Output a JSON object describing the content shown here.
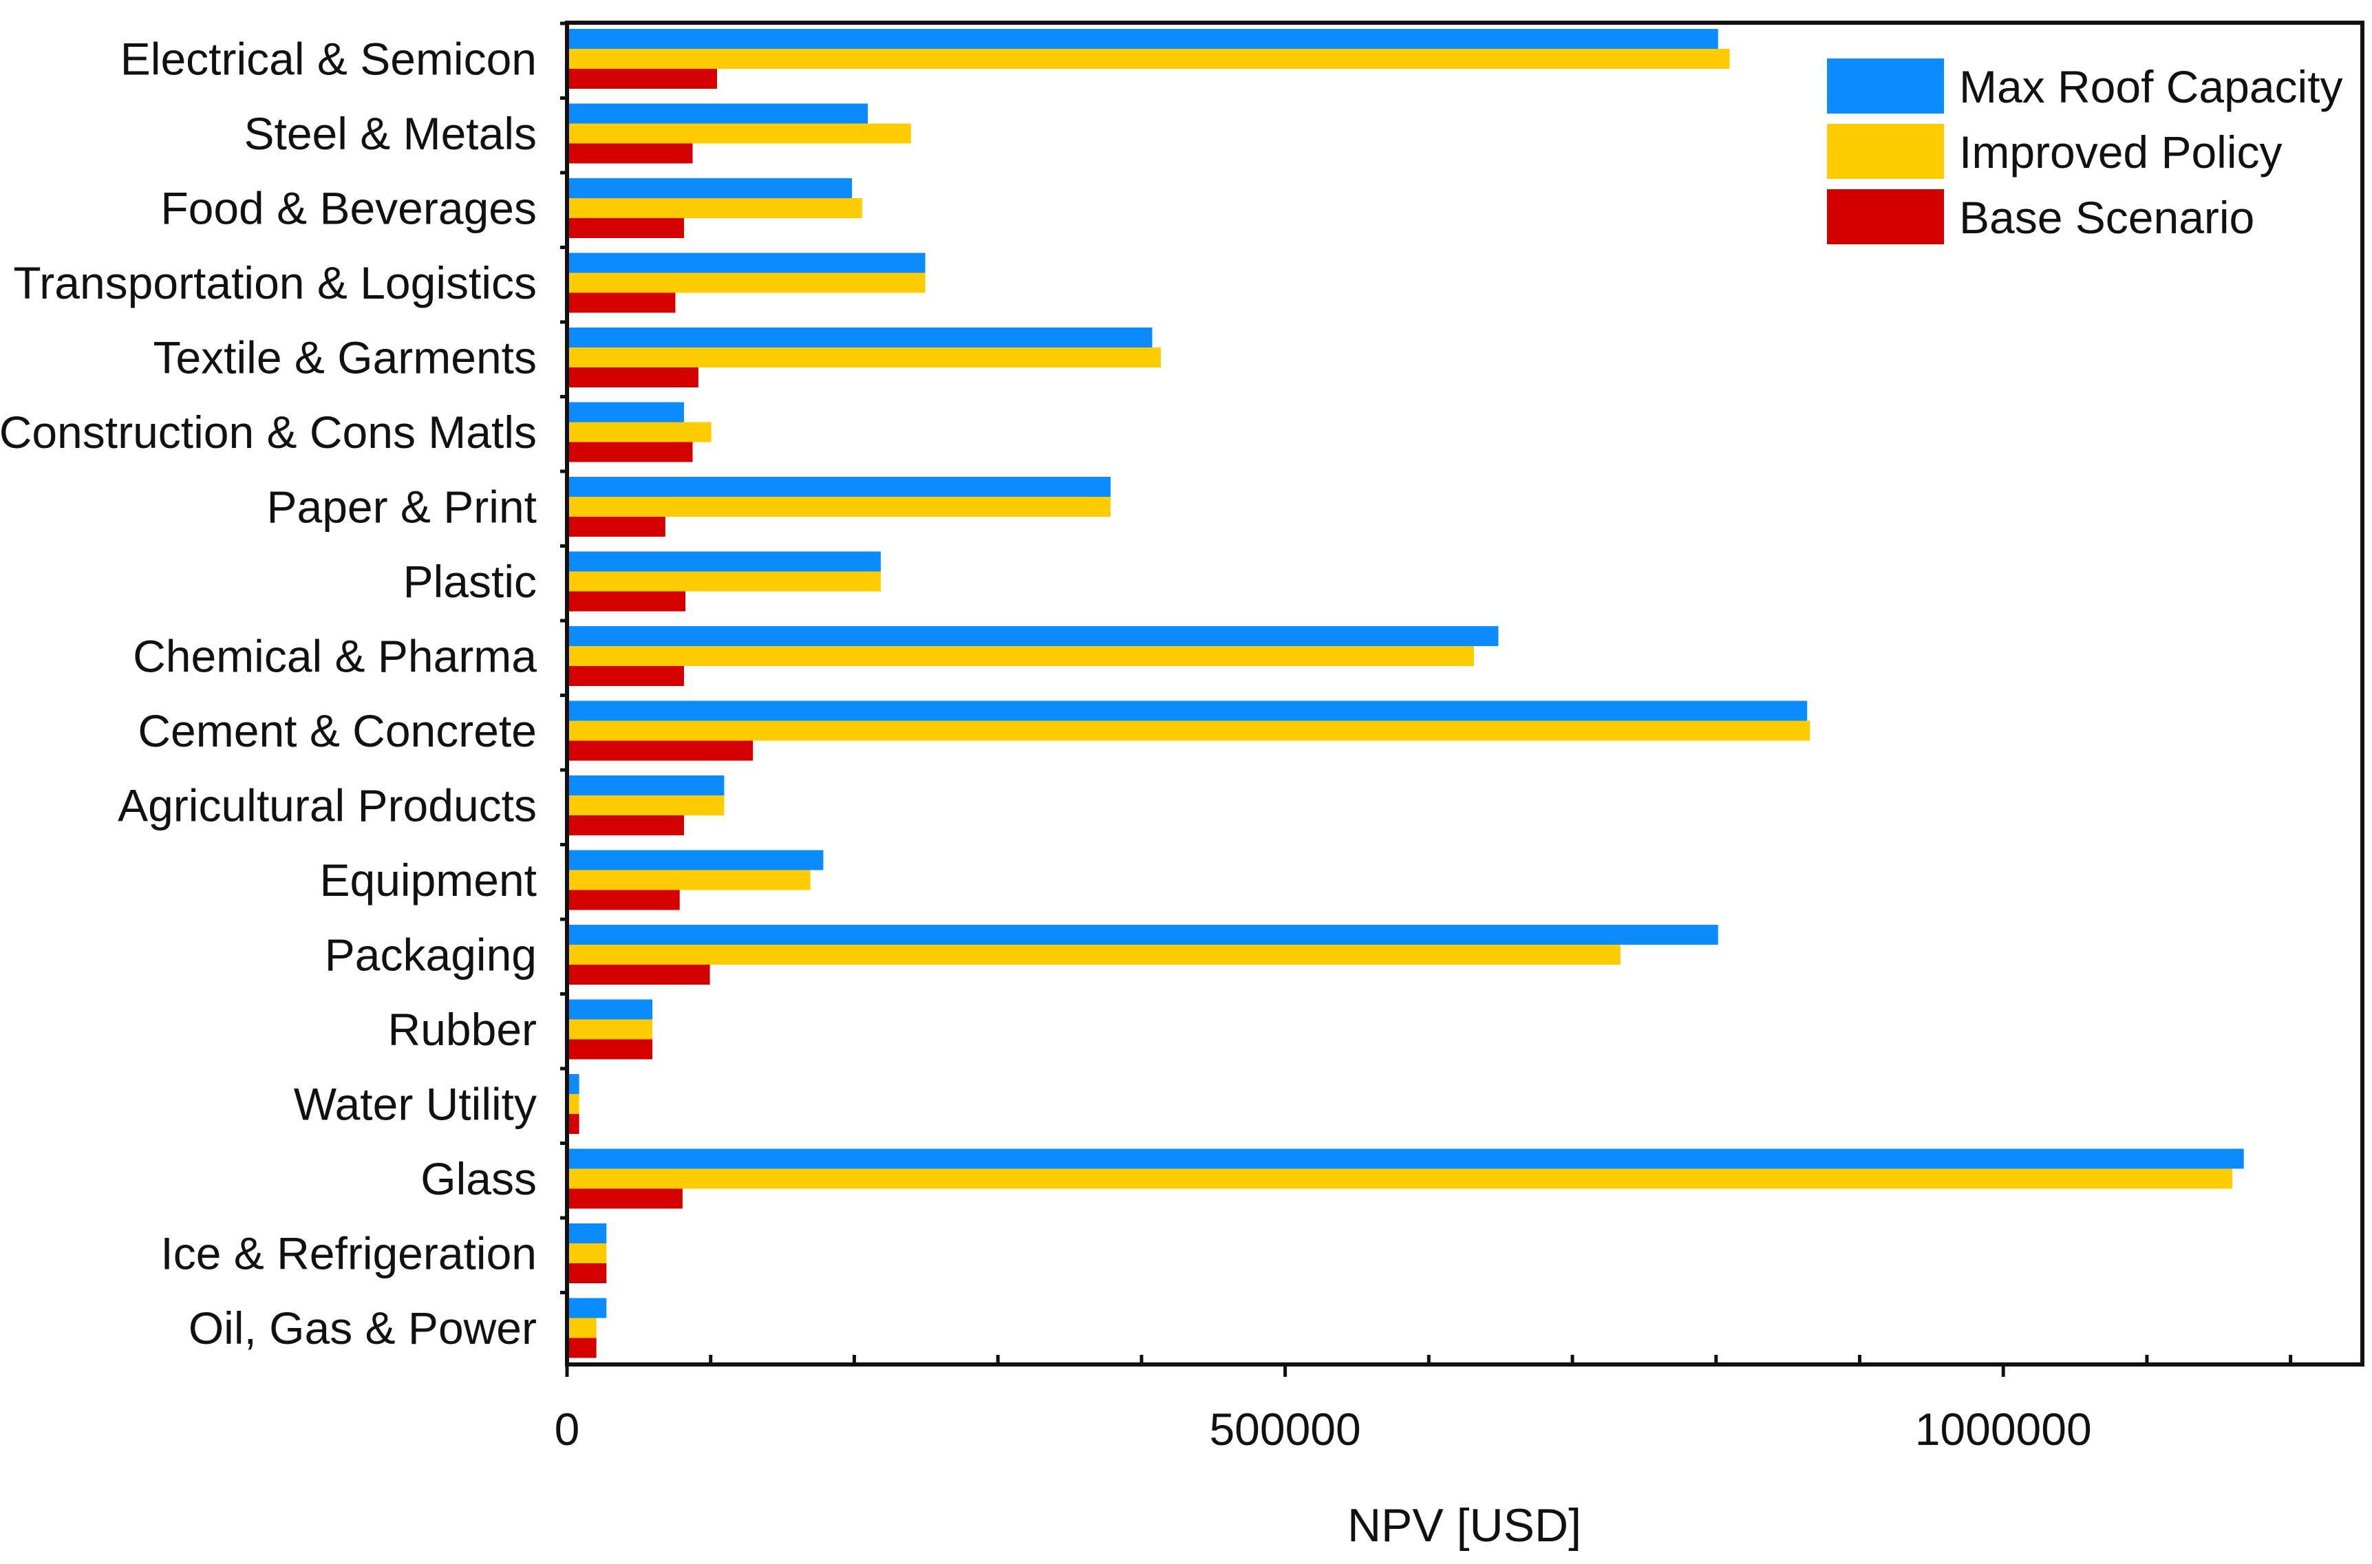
{
  "chart_data": {
    "type": "bar",
    "orientation": "horizontal",
    "title": "",
    "xlabel": "NPV [USD]",
    "ylabel": "",
    "xlim": [
      0,
      1250000
    ],
    "x_major_ticks": [
      0,
      500000,
      1000000
    ],
    "x_minor_tick_step": 100000,
    "x_tick_labels": [
      "0",
      "500000",
      "1000000"
    ],
    "grid": false,
    "legend_position": "top-right",
    "categories": [
      "Electrical & Semicon",
      "Steel & Metals",
      "Food & Beverages",
      "Transportation & Logistics",
      "Textile & Garments",
      "Construction & Cons Matls",
      "Paper & Print",
      "Plastic",
      "Chemical & Pharma",
      "Cement & Concrete",
      "Agricultural Products",
      "Equipment",
      "Packaging",
      "Rubber",
      "Water Utility",
      "Glass",
      "Ice & Refrigeration",
      "Oil, Gas & Power"
    ],
    "series": [
      {
        "name": "Max Roof Capacity",
        "color": "#0a8cff",
        "values": [
          800000,
          208000,
          197000,
          248000,
          406000,
          80000,
          377000,
          217000,
          647000,
          862000,
          108000,
          177000,
          800000,
          58000,
          7000,
          1166000,
          26000,
          26000
        ]
      },
      {
        "name": "Improved Policy",
        "color": "#ffcc00",
        "values": [
          808000,
          238000,
          204000,
          248000,
          412000,
          99000,
          377000,
          217000,
          630000,
          864000,
          108000,
          168000,
          732000,
          58000,
          7000,
          1158000,
          26000,
          19000
        ]
      },
      {
        "name": "Base Scenario",
        "color": "#d40000",
        "values": [
          103000,
          86000,
          80000,
          74000,
          90000,
          86000,
          67000,
          81000,
          80000,
          128000,
          80000,
          77000,
          98000,
          58000,
          7000,
          79000,
          26000,
          19000
        ]
      }
    ]
  }
}
